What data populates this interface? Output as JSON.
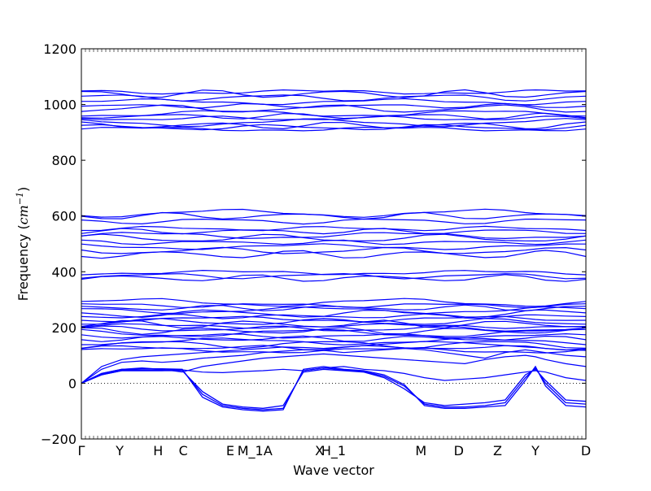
{
  "chart_data": {
    "type": "line",
    "title": "",
    "xlabel": "Wave vector",
    "ylabel": "Frequency ($cm^{-1}$)",
    "ylabel_parts": {
      "text": "Frequency (",
      "unit": "cm",
      "exponent": "−1",
      "close": ")"
    },
    "ylim": [
      -200,
      1200
    ],
    "yticks": [
      -200,
      0,
      200,
      400,
      600,
      800,
      1000,
      1200
    ],
    "grid": false,
    "zero_line": true,
    "line_color": "#0000ff",
    "kpoints": [
      {
        "label": "Γ",
        "pos": 0.0
      },
      {
        "label": "Y",
        "pos": 0.076
      },
      {
        "label": "H",
        "pos": 0.152
      },
      {
        "label": "C",
        "pos": 0.202
      },
      {
        "label": "E",
        "pos": 0.295
      },
      {
        "label": "M_1",
        "pos": 0.335
      },
      {
        "label": "A",
        "pos": 0.37
      },
      {
        "label": "X",
        "pos": 0.472
      },
      {
        "label": "H_1",
        "pos": 0.5
      },
      {
        "label": "M",
        "pos": 0.673
      },
      {
        "label": "D",
        "pos": 0.748
      },
      {
        "label": "Z",
        "pos": 0.825
      },
      {
        "label": "Y",
        "pos": 0.9
      },
      {
        "label": "D",
        "pos": 1.0
      }
    ],
    "bands": {
      "x": [
        0,
        0.04,
        0.08,
        0.12,
        0.16,
        0.2,
        0.24,
        0.28,
        0.32,
        0.36,
        0.4,
        0.44,
        0.48,
        0.52,
        0.56,
        0.6,
        0.64,
        0.68,
        0.72,
        0.76,
        0.8,
        0.84,
        0.88,
        0.9,
        0.92,
        0.96,
        1.0
      ],
      "flat_levels": [
        912,
        918,
        925,
        935,
        950,
        958,
        968,
        985,
        995,
        1010,
        1025,
        1038,
        1045,
        582,
        600,
        610,
        555,
        545,
        530,
        520,
        505,
        490,
        475,
        462,
        397,
        385,
        377,
        290,
        280,
        270,
        262,
        250,
        240,
        230,
        220,
        212,
        205,
        195,
        188,
        180,
        170,
        160,
        150,
        140,
        128,
        118
      ],
      "low_branches": [
        [
          0,
          30,
          45,
          45,
          45,
          48,
          40,
          38,
          42,
          45,
          50,
          45,
          55,
          60,
          50,
          45,
          35,
          20,
          10,
          15,
          20,
          30,
          40,
          45,
          40,
          20,
          10
        ],
        [
          0,
          35,
          50,
          55,
          50,
          40,
          60,
          70,
          80,
          90,
          95,
          100,
          105,
          100,
          95,
          90,
          85,
          80,
          75,
          70,
          85,
          95,
          100,
          95,
          85,
          70,
          60
        ],
        [
          0,
          50,
          75,
          80,
          75,
          80,
          90,
          95,
          100,
          110,
          115,
          120,
          118,
          110,
          115,
          120,
          125,
          120,
          110,
          100,
          90,
          110,
          120,
          115,
          110,
          100,
          95
        ],
        [
          0,
          60,
          85,
          95,
          100,
          105,
          110,
          115,
          120,
          125,
          130,
          128,
          125,
          130,
          135,
          140,
          145,
          150,
          148,
          145,
          140,
          135,
          130,
          128,
          125,
          120,
          118
        ]
      ],
      "soft_modes": [
        [
          0,
          30,
          45,
          45,
          45,
          45,
          -30,
          -75,
          -85,
          -90,
          -80,
          40,
          50,
          45,
          40,
          20,
          -20,
          -70,
          -80,
          -75,
          -70,
          -60,
          30,
          50,
          10,
          -60,
          -65
        ],
        [
          0,
          32,
          48,
          48,
          48,
          48,
          -40,
          -80,
          -90,
          -95,
          -90,
          45,
          55,
          48,
          42,
          25,
          -10,
          -75,
          -85,
          -85,
          -80,
          -70,
          20,
          55,
          0,
          -70,
          -75
        ],
        [
          0,
          35,
          50,
          52,
          52,
          50,
          -50,
          -85,
          -95,
          -100,
          -95,
          50,
          60,
          50,
          45,
          30,
          -5,
          -80,
          -90,
          -90,
          -85,
          -80,
          10,
          60,
          -10,
          -80,
          -85
        ]
      ]
    }
  }
}
